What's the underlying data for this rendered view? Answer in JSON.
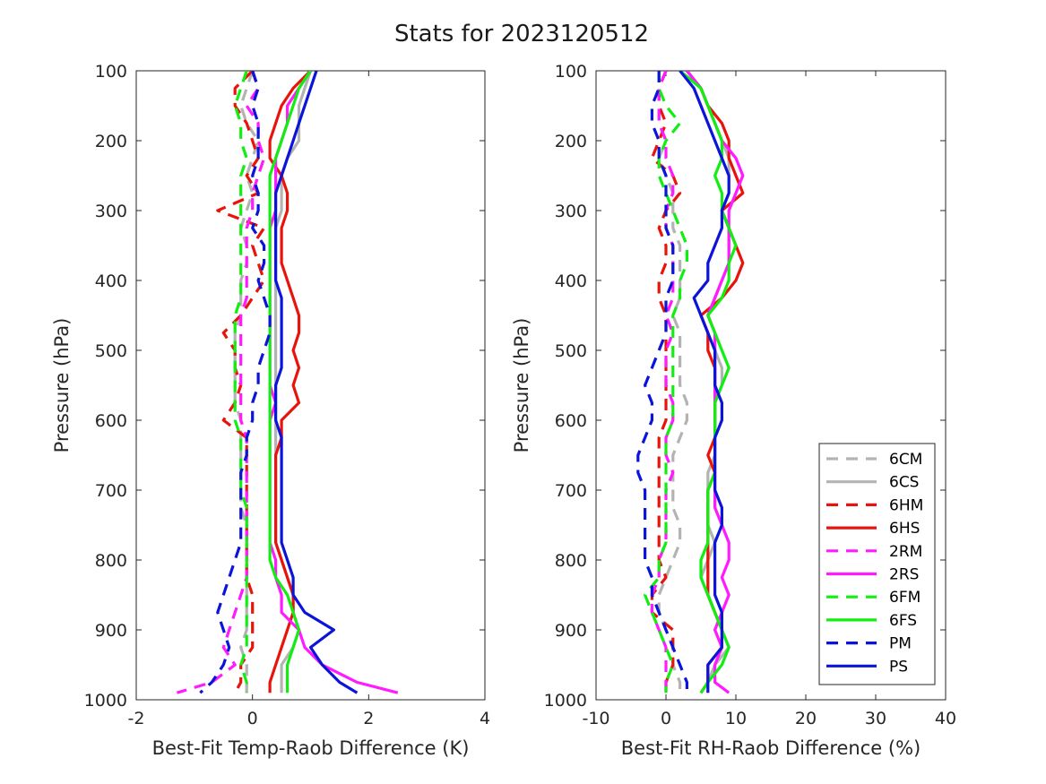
{
  "title": "Stats for 2023120512",
  "legend": {
    "placement": "lower-right of right panel",
    "entries": [
      {
        "name": "6CM",
        "color": "#b3b3b3",
        "dash": true
      },
      {
        "name": "6CS",
        "color": "#b3b3b3",
        "dash": false
      },
      {
        "name": "6HM",
        "color": "#e8140c",
        "dash": true
      },
      {
        "name": "6HS",
        "color": "#e8140c",
        "dash": false
      },
      {
        "name": "2RM",
        "color": "#ff1aff",
        "dash": true
      },
      {
        "name": "2RS",
        "color": "#ff1aff",
        "dash": false
      },
      {
        "name": "6FM",
        "color": "#12ee12",
        "dash": true
      },
      {
        "name": "6FS",
        "color": "#12ee12",
        "dash": false
      },
      {
        "name": "PM",
        "color": "#0b14d8",
        "dash": true
      },
      {
        "name": "PS",
        "color": "#0b14d8",
        "dash": false
      }
    ]
  },
  "chart_data": [
    {
      "type": "line",
      "xlabel": "Best-Fit Temp-Raob Difference (K)",
      "ylabel": "Pressure (hPa)",
      "xlim": [
        -2,
        4
      ],
      "ylim": [
        1000,
        100
      ],
      "y_reversed": true,
      "xticks": [
        "-2",
        "0",
        "2",
        "4"
      ],
      "yticks": [
        "100",
        "200",
        "300",
        "400",
        "500",
        "600",
        "700",
        "800",
        "900",
        "1000"
      ],
      "pressure_levels": [
        100,
        125,
        150,
        175,
        200,
        225,
        250,
        275,
        300,
        325,
        350,
        375,
        400,
        425,
        450,
        475,
        500,
        525,
        550,
        575,
        600,
        625,
        650,
        675,
        700,
        725,
        750,
        775,
        800,
        825,
        850,
        875,
        900,
        925,
        950,
        975,
        990
      ],
      "series": [
        {
          "name": "6CM",
          "values": [
            0.0,
            -0.1,
            -0.2,
            -0.1,
            0.1,
            0.0,
            -0.1,
            0.0,
            -0.1,
            -0.2,
            -0.1,
            -0.1,
            -0.2,
            -0.2,
            -0.2,
            -0.3,
            -0.3,
            -0.3,
            -0.3,
            -0.3,
            -0.2,
            -0.2,
            -0.2,
            -0.2,
            -0.2,
            -0.2,
            -0.1,
            -0.1,
            -0.1,
            -0.1,
            -0.1,
            -0.1,
            -0.1,
            -0.2,
            -0.1,
            -0.1,
            -0.1
          ]
        },
        {
          "name": "6CS",
          "values": [
            1.0,
            0.9,
            0.8,
            0.8,
            0.8,
            0.6,
            0.5,
            0.5,
            0.5,
            0.4,
            0.4,
            0.4,
            0.4,
            0.4,
            0.4,
            0.4,
            0.4,
            0.4,
            0.4,
            0.4,
            0.4,
            0.4,
            0.4,
            0.4,
            0.4,
            0.4,
            0.4,
            0.4,
            0.5,
            0.6,
            0.7,
            0.7,
            0.8,
            0.7,
            0.5,
            0.5,
            0.5
          ]
        },
        {
          "name": "6HM",
          "values": [
            0.0,
            -0.3,
            -0.3,
            -0.1,
            0.0,
            0.1,
            -0.1,
            0.1,
            -0.6,
            0.2,
            0.0,
            0.1,
            0.2,
            0.0,
            -0.2,
            -0.5,
            -0.3,
            -0.3,
            -0.2,
            -0.3,
            -0.5,
            -0.1,
            -0.1,
            -0.1,
            -0.1,
            -0.1,
            -0.1,
            -0.1,
            -0.1,
            -0.1,
            0.0,
            0.0,
            0.0,
            0.0,
            -0.2,
            -0.2,
            -0.3
          ]
        },
        {
          "name": "6HS",
          "values": [
            1.0,
            0.7,
            0.5,
            0.4,
            0.3,
            0.3,
            0.5,
            0.6,
            0.6,
            0.5,
            0.5,
            0.5,
            0.6,
            0.7,
            0.8,
            0.8,
            0.7,
            0.8,
            0.7,
            0.8,
            0.5,
            0.5,
            0.4,
            0.4,
            0.4,
            0.4,
            0.4,
            0.4,
            0.5,
            0.6,
            0.7,
            0.7,
            0.6,
            0.5,
            0.4,
            0.3,
            0.3
          ]
        },
        {
          "name": "2RM",
          "values": [
            0.0,
            0.1,
            -0.1,
            0.1,
            0.1,
            0.2,
            0.1,
            0.0,
            0.0,
            -0.1,
            -0.1,
            -0.1,
            -0.1,
            -0.1,
            -0.2,
            -0.2,
            -0.2,
            -0.2,
            -0.2,
            -0.2,
            -0.2,
            -0.1,
            -0.1,
            -0.1,
            -0.1,
            -0.1,
            -0.1,
            -0.1,
            -0.1,
            -0.1,
            -0.2,
            -0.3,
            -0.4,
            -0.5,
            -0.3,
            -0.7,
            -1.3
          ]
        },
        {
          "name": "2RS",
          "values": [
            1.0,
            0.8,
            0.6,
            0.6,
            0.5,
            0.4,
            0.4,
            0.4,
            0.4,
            0.3,
            0.3,
            0.3,
            0.3,
            0.3,
            0.3,
            0.3,
            0.3,
            0.3,
            0.3,
            0.4,
            0.3,
            0.3,
            0.3,
            0.3,
            0.3,
            0.3,
            0.3,
            0.3,
            0.4,
            0.4,
            0.5,
            0.5,
            0.8,
            0.9,
            1.2,
            1.8,
            2.5
          ]
        },
        {
          "name": "6FM",
          "values": [
            -0.1,
            -0.2,
            -0.3,
            -0.2,
            -0.2,
            -0.1,
            -0.2,
            -0.2,
            -0.2,
            -0.2,
            -0.2,
            -0.2,
            -0.2,
            -0.2,
            -0.3,
            -0.3,
            -0.3,
            -0.3,
            -0.3,
            -0.3,
            -0.3,
            -0.2,
            -0.2,
            -0.2,
            -0.2,
            -0.1,
            -0.1,
            -0.1,
            -0.1,
            -0.1,
            -0.1,
            -0.1,
            -0.1,
            -0.1,
            -0.2,
            -0.1,
            -0.1
          ]
        },
        {
          "name": "6FS",
          "values": [
            1.0,
            0.8,
            0.7,
            0.6,
            0.5,
            0.4,
            0.3,
            0.3,
            0.3,
            0.3,
            0.3,
            0.3,
            0.3,
            0.3,
            0.3,
            0.3,
            0.3,
            0.3,
            0.3,
            0.3,
            0.3,
            0.3,
            0.3,
            0.3,
            0.3,
            0.3,
            0.3,
            0.3,
            0.3,
            0.4,
            0.6,
            0.7,
            0.8,
            0.7,
            0.6,
            0.6,
            0.6
          ]
        },
        {
          "name": "PM",
          "values": [
            0.0,
            0.1,
            0.0,
            0.1,
            0.1,
            0.1,
            0.0,
            0.1,
            0.1,
            0.0,
            0.2,
            0.2,
            0.1,
            0.2,
            0.3,
            0.3,
            0.2,
            0.1,
            0.1,
            0.0,
            0.0,
            -0.1,
            -0.1,
            -0.2,
            -0.2,
            -0.2,
            -0.2,
            -0.2,
            -0.3,
            -0.4,
            -0.5,
            -0.6,
            -0.5,
            -0.4,
            -0.5,
            -0.7,
            -0.9
          ]
        },
        {
          "name": "PS",
          "values": [
            1.1,
            1.0,
            0.9,
            0.8,
            0.7,
            0.6,
            0.5,
            0.4,
            0.4,
            0.4,
            0.4,
            0.4,
            0.4,
            0.5,
            0.5,
            0.5,
            0.5,
            0.5,
            0.4,
            0.4,
            0.4,
            0.5,
            0.5,
            0.5,
            0.5,
            0.5,
            0.5,
            0.5,
            0.6,
            0.7,
            0.7,
            0.9,
            1.4,
            1.0,
            1.2,
            1.5,
            1.8
          ]
        }
      ]
    },
    {
      "type": "line",
      "xlabel": "Best-Fit RH-Raob Difference (%)",
      "ylabel": "Pressure (hPa)",
      "xlim": [
        -10,
        40
      ],
      "ylim": [
        1000,
        100
      ],
      "y_reversed": true,
      "xticks": [
        "-10",
        "0",
        "10",
        "20",
        "30",
        "40"
      ],
      "yticks": [
        "100",
        "200",
        "300",
        "400",
        "500",
        "600",
        "700",
        "800",
        "900",
        "1000"
      ],
      "pressure_levels": [
        100,
        125,
        150,
        175,
        200,
        225,
        250,
        275,
        300,
        325,
        350,
        375,
        400,
        425,
        450,
        475,
        500,
        525,
        550,
        575,
        600,
        625,
        650,
        675,
        700,
        725,
        750,
        775,
        800,
        825,
        850,
        875,
        900,
        925,
        950,
        975,
        990
      ],
      "series": [
        {
          "name": "6CM",
          "values": [
            0,
            -1,
            -1,
            -1,
            0,
            -1,
            0,
            1,
            1,
            1,
            2,
            2,
            2,
            2,
            1,
            2,
            2,
            2,
            2,
            3,
            3,
            2,
            1,
            1,
            1,
            1,
            2,
            2,
            1,
            0,
            -1,
            -1,
            0,
            1,
            1,
            2,
            2
          ]
        },
        {
          "name": "6CS",
          "values": [
            3,
            5,
            6,
            7,
            8,
            9,
            9,
            9,
            8,
            9,
            9,
            9,
            8,
            7,
            6,
            7,
            7,
            8,
            8,
            7,
            7,
            7,
            7,
            6,
            6,
            6,
            6,
            7,
            6,
            5,
            6,
            7,
            8,
            9,
            7,
            6,
            5
          ]
        },
        {
          "name": "6HM",
          "values": [
            0,
            -1,
            -1,
            0,
            -1,
            -2,
            1,
            2,
            0,
            -1,
            0,
            0,
            -1,
            -1,
            0,
            0,
            0,
            0,
            0,
            0,
            0,
            -1,
            -1,
            -1,
            -1,
            -1,
            -1,
            -1,
            -1,
            0,
            -2,
            -2,
            1,
            1,
            1,
            0,
            0
          ]
        },
        {
          "name": "6HS",
          "values": [
            3,
            5,
            6,
            8,
            9,
            9,
            10,
            11,
            8,
            9,
            10,
            11,
            10,
            8,
            5,
            6,
            6,
            7,
            7,
            7,
            7,
            7,
            6,
            7,
            6,
            6,
            6,
            6,
            6,
            6,
            6,
            7,
            8,
            8,
            6,
            6,
            5
          ]
        },
        {
          "name": "2RM",
          "values": [
            0,
            -1,
            -1,
            -1,
            0,
            0,
            1,
            1,
            0,
            0,
            1,
            1,
            1,
            1,
            0,
            1,
            0,
            0,
            0,
            1,
            1,
            0,
            0,
            1,
            0,
            0,
            0,
            0,
            -1,
            -1,
            -2,
            -2,
            -1,
            0,
            0,
            0,
            0
          ]
        },
        {
          "name": "2RS",
          "values": [
            3,
            5,
            6,
            7,
            8,
            10,
            11,
            10,
            9,
            9,
            9,
            9,
            8,
            7,
            6,
            7,
            7,
            7,
            7,
            7,
            7,
            7,
            7,
            7,
            7,
            7,
            8,
            9,
            9,
            8,
            9,
            8,
            7,
            8,
            7,
            7,
            9
          ]
        },
        {
          "name": "6FM",
          "values": [
            -1,
            -1,
            0,
            2,
            0,
            -1,
            -1,
            0,
            1,
            2,
            3,
            3,
            2,
            2,
            1,
            1,
            1,
            1,
            1,
            1,
            1,
            0,
            0,
            0,
            0,
            0,
            0,
            0,
            -1,
            -1,
            -3,
            -2,
            -1,
            0,
            1,
            0,
            0
          ]
        },
        {
          "name": "6FS",
          "values": [
            2,
            5,
            6,
            7,
            8,
            8,
            7,
            8,
            8,
            9,
            10,
            9,
            9,
            8,
            6,
            7,
            8,
            9,
            8,
            7,
            7,
            7,
            7,
            7,
            6,
            6,
            6,
            6,
            5,
            5,
            6,
            7,
            8,
            9,
            8,
            6,
            5
          ]
        },
        {
          "name": "PM",
          "values": [
            -1,
            -1,
            -2,
            -2,
            -1,
            -1,
            0,
            0,
            0,
            0,
            1,
            1,
            1,
            0,
            0,
            0,
            -1,
            -2,
            -3,
            -2,
            -2,
            -3,
            -4,
            -4,
            -3,
            -3,
            -3,
            -3,
            -3,
            -2,
            -2,
            -1,
            0,
            1,
            2,
            3,
            3
          ]
        },
        {
          "name": "PS",
          "values": [
            2,
            4,
            5,
            6,
            7,
            8,
            9,
            9,
            8,
            8,
            7,
            6,
            6,
            4,
            5,
            6,
            7,
            7,
            7,
            8,
            8,
            7,
            7,
            7,
            7,
            8,
            8,
            7,
            7,
            7,
            7,
            8,
            8,
            8,
            6,
            6,
            6
          ]
        }
      ]
    }
  ]
}
